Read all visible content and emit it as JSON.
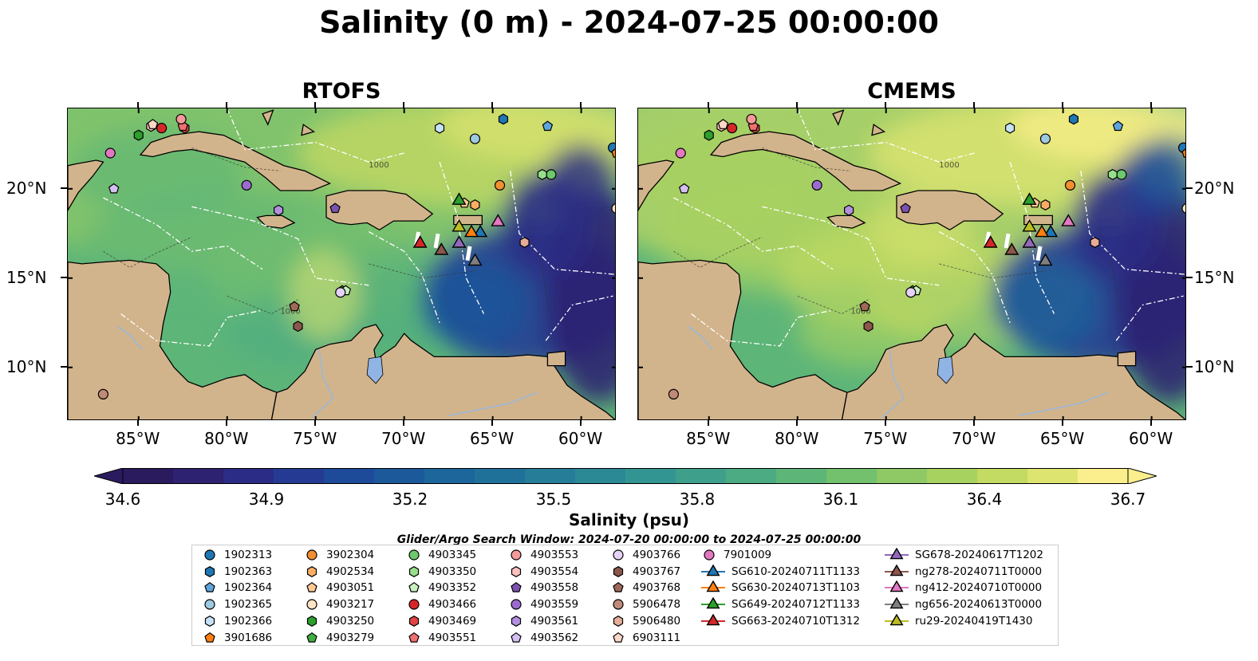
{
  "title": "Salinity (0 m) - 2024-07-25 00:00:00",
  "panels": [
    {
      "title": "RTOFS",
      "theme": "rtofs"
    },
    {
      "title": "CMEMS",
      "theme": "cmems"
    }
  ],
  "map": {
    "lon_range": [
      -89,
      -58
    ],
    "lat_range": [
      7,
      24.5
    ],
    "lon_ticks": [
      {
        "value": -85,
        "label": "85°W"
      },
      {
        "value": -80,
        "label": "80°W"
      },
      {
        "value": -75,
        "label": "75°W"
      },
      {
        "value": -70,
        "label": "70°W"
      },
      {
        "value": -65,
        "label": "65°W"
      },
      {
        "value": -60,
        "label": "60°W"
      }
    ],
    "lat_ticks": [
      {
        "value": 20,
        "label": "20°N"
      },
      {
        "value": 15,
        "label": "15°N"
      },
      {
        "value": 10,
        "label": "10°N"
      }
    ],
    "land_color": "#d2b48c",
    "lake_color": "#90b4e4",
    "contour_label": "1000"
  },
  "colorbar": {
    "title": "Salinity (psu)",
    "ticks": [
      "34.6",
      "34.9",
      "35.2",
      "35.5",
      "35.8",
      "36.1",
      "36.4",
      "36.7"
    ],
    "colors": [
      "#2a1b5e",
      "#2d2171",
      "#2b2c85",
      "#253b93",
      "#1e4b99",
      "#1b599b",
      "#1c669b",
      "#20719a",
      "#257d98",
      "#2b8895",
      "#339591",
      "#3ea08b",
      "#4cab82",
      "#5db578",
      "#73c06d",
      "#8ec966",
      "#a8d25f",
      "#c3da63",
      "#dde46f",
      "#fbee8c"
    ]
  },
  "search_window": "Glider/Argo Search Window: 2024-07-20 00:00:00 to 2024-07-25 00:00:00",
  "legend": [
    {
      "label": "1902313",
      "shape": "circle",
      "color": "#1f77b4"
    },
    {
      "label": "1902363",
      "shape": "hexagon",
      "color": "#1f77b4"
    },
    {
      "label": "1902364",
      "shape": "pentagon",
      "color": "#5da5dc"
    },
    {
      "label": "1902365",
      "shape": "circle",
      "color": "#9ecae1"
    },
    {
      "label": "1902366",
      "shape": "hexagon",
      "color": "#c6e2f5"
    },
    {
      "label": "3901686",
      "shape": "pentagon",
      "color": "#ff7f0e"
    },
    {
      "label": "3902304",
      "shape": "circle",
      "color": "#f28f30"
    },
    {
      "label": "4902534",
      "shape": "hexagon",
      "color": "#ffad66"
    },
    {
      "label": "4903051",
      "shape": "pentagon",
      "color": "#ffc995"
    },
    {
      "label": "4903217",
      "shape": "circle",
      "color": "#ffe4c2"
    },
    {
      "label": "4903250",
      "shape": "hexagon",
      "color": "#2ca02c"
    },
    {
      "label": "4903279",
      "shape": "pentagon",
      "color": "#3fb03f"
    },
    {
      "label": "4903345",
      "shape": "circle",
      "color": "#6cc96c"
    },
    {
      "label": "4903350",
      "shape": "hexagon",
      "color": "#98df8a"
    },
    {
      "label": "4903352",
      "shape": "pentagon",
      "color": "#c9f0c0"
    },
    {
      "label": "4903466",
      "shape": "circle",
      "color": "#d62728"
    },
    {
      "label": "4903469",
      "shape": "hexagon",
      "color": "#e04444"
    },
    {
      "label": "4903551",
      "shape": "pentagon",
      "color": "#f07070"
    },
    {
      "label": "4903553",
      "shape": "circle",
      "color": "#f59a9a"
    },
    {
      "label": "4903554",
      "shape": "hexagon",
      "color": "#ffc0c0"
    },
    {
      "label": "4903558",
      "shape": "pentagon",
      "color": "#7b52ae"
    },
    {
      "label": "4903559",
      "shape": "circle",
      "color": "#9b6bd0"
    },
    {
      "label": "4903561",
      "shape": "hexagon",
      "color": "#b38fe0"
    },
    {
      "label": "4903562",
      "shape": "pentagon",
      "color": "#d4c0f2"
    },
    {
      "label": "4903766",
      "shape": "circle",
      "color": "#e6d2f8"
    },
    {
      "label": "4903767",
      "shape": "hexagon",
      "color": "#8c564b"
    },
    {
      "label": "4903768",
      "shape": "pentagon",
      "color": "#a06858"
    },
    {
      "label": "5906478",
      "shape": "circle",
      "color": "#c08a78"
    },
    {
      "label": "5906480",
      "shape": "hexagon",
      "color": "#e6ad98"
    },
    {
      "label": "6903111",
      "shape": "pentagon",
      "color": "#ffd8c8"
    },
    {
      "label": "7901009",
      "shape": "circle",
      "color": "#e377c2"
    },
    {
      "label": "SG610-20240711T1133",
      "shape": "triangle",
      "color": "#1f77b4"
    },
    {
      "label": "SG630-20240713T1103",
      "shape": "triangle",
      "color": "#ff7f0e"
    },
    {
      "label": "SG649-20240712T1133",
      "shape": "triangle",
      "color": "#2ca02c"
    },
    {
      "label": "SG663-20240710T1312",
      "shape": "triangle",
      "color": "#d62728"
    },
    {
      "label": "SG678-20240617T1202",
      "shape": "triangle",
      "color": "#9467bd"
    },
    {
      "label": "ng278-20240711T0000",
      "shape": "triangle",
      "color": "#8c564b"
    },
    {
      "label": "ng412-20240710T0000",
      "shape": "triangle",
      "color": "#e377c2"
    },
    {
      "label": "ng656-20240613T0000",
      "shape": "triangle",
      "color": "#7f7f7f"
    },
    {
      "label": "ru29-20240419T1430",
      "shape": "triangle",
      "color": "#bcbd22"
    }
  ],
  "markers": [
    {
      "id": "1902313",
      "lon": -58.2,
      "lat": 22.3
    },
    {
      "id": "1902363",
      "lon": -64.4,
      "lat": 23.9
    },
    {
      "id": "1902364",
      "lon": -61.9,
      "lat": 23.5
    },
    {
      "id": "1902365",
      "lon": -66.0,
      "lat": 22.8
    },
    {
      "id": "1902366",
      "lon": -68.0,
      "lat": 23.4
    },
    {
      "id": "3901686",
      "lon": -58.0,
      "lat": 22.0
    },
    {
      "id": "3902304",
      "lon": -64.6,
      "lat": 20.2
    },
    {
      "id": "4902534",
      "lon": -66.0,
      "lat": 19.1
    },
    {
      "id": "4903051",
      "lon": -66.6,
      "lat": 19.2
    },
    {
      "id": "4903217",
      "lon": -58.0,
      "lat": 18.9
    },
    {
      "id": "4903250",
      "lon": -85.0,
      "lat": 23.0
    },
    {
      "id": "4903279",
      "lon": -73.5,
      "lat": 14.3
    },
    {
      "id": "4903345",
      "lon": -61.7,
      "lat": 20.8
    },
    {
      "id": "4903350",
      "lon": -62.2,
      "lat": 20.8
    },
    {
      "id": "4903352",
      "lon": -73.3,
      "lat": 14.3
    },
    {
      "id": "4903466",
      "lon": -83.7,
      "lat": 23.4
    },
    {
      "id": "4903469",
      "lon": -82.4,
      "lat": 23.4
    },
    {
      "id": "4903551",
      "lon": -82.5,
      "lat": 23.5
    },
    {
      "id": "4903553",
      "lon": -82.6,
      "lat": 23.9
    },
    {
      "id": "4903554",
      "lon": -84.3,
      "lat": 23.5
    },
    {
      "id": "4903558",
      "lon": -73.9,
      "lat": 18.9
    },
    {
      "id": "4903559",
      "lon": -78.9,
      "lat": 20.2
    },
    {
      "id": "4903561",
      "lon": -77.1,
      "lat": 18.8
    },
    {
      "id": "4903562",
      "lon": -86.4,
      "lat": 20.0
    },
    {
      "id": "4903766",
      "lon": -73.6,
      "lat": 14.2
    },
    {
      "id": "4903767",
      "lon": -76.0,
      "lat": 12.3
    },
    {
      "id": "4903768",
      "lon": -76.2,
      "lat": 13.4
    },
    {
      "id": "5906478",
      "lon": -87.0,
      "lat": 8.5
    },
    {
      "id": "5906480",
      "lon": -63.2,
      "lat": 17.0
    },
    {
      "id": "6903111",
      "lon": -84.2,
      "lat": 23.6
    },
    {
      "id": "7901009",
      "lon": -86.6,
      "lat": 22.0
    },
    {
      "id": "SG610-20240711T1133",
      "lon": -65.7,
      "lat": 17.6
    },
    {
      "id": "SG630-20240713T1103",
      "lon": -66.2,
      "lat": 17.6
    },
    {
      "id": "SG649-20240712T1133",
      "lon": -66.9,
      "lat": 19.4
    },
    {
      "id": "SG663-20240710T1312",
      "lon": -69.1,
      "lat": 17.0
    },
    {
      "id": "SG678-20240617T1202",
      "lon": -66.9,
      "lat": 17.0
    },
    {
      "id": "ng278-20240711T0000",
      "lon": -67.9,
      "lat": 16.6
    },
    {
      "id": "ng412-20240710T0000",
      "lon": -64.7,
      "lat": 18.2
    },
    {
      "id": "ng656-20240613T0000",
      "lon": -66.0,
      "lat": 16.0
    },
    {
      "id": "ru29-20240419T1430",
      "lon": -66.9,
      "lat": 17.9
    }
  ]
}
